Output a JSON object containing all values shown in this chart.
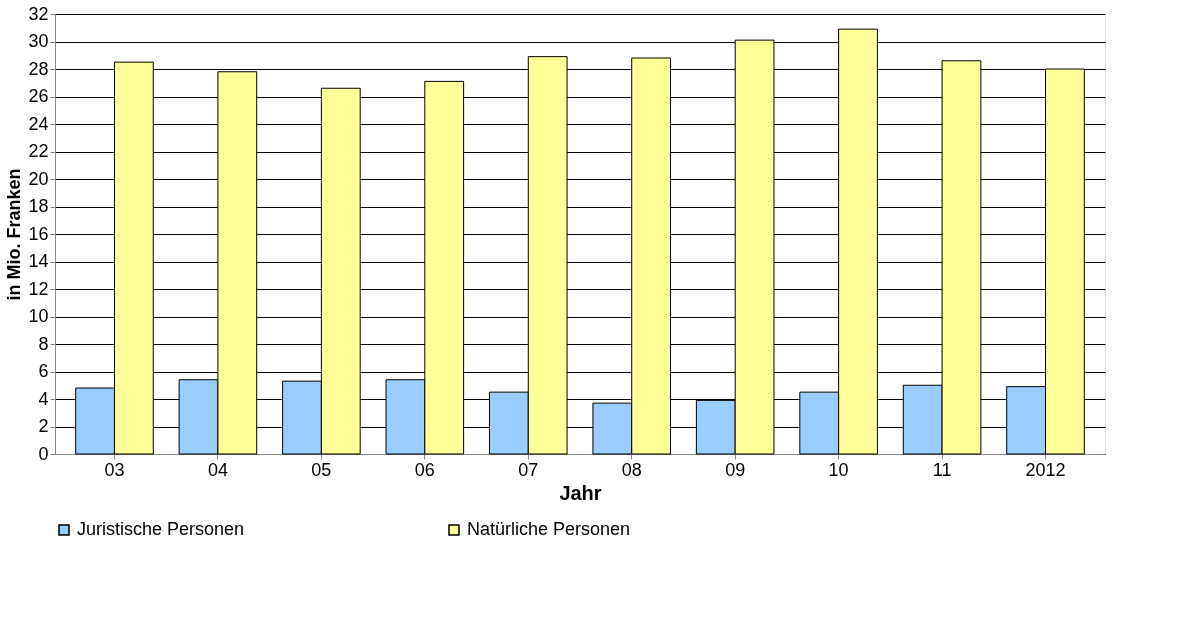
{
  "chart_data": {
    "type": "bar",
    "xlabel": "Jahr",
    "ylabel": "in Mio. Franken",
    "categories": [
      "03",
      "04",
      "05",
      "06",
      "07",
      "08",
      "09",
      "10",
      "11",
      "2012"
    ],
    "series": [
      {
        "name": "Juristische Personen",
        "color": "#99ccff",
        "values": [
          4.8,
          5.4,
          5.3,
          5.4,
          4.5,
          3.7,
          3.9,
          4.5,
          5.0,
          4.9
        ]
      },
      {
        "name": "Natürliche Personen",
        "color": "#ffff99",
        "values": [
          28.5,
          27.8,
          26.6,
          27.1,
          28.9,
          28.8,
          30.1,
          30.9,
          28.6,
          28.0
        ]
      }
    ],
    "ylim": [
      0,
      32
    ],
    "yticks": [
      0,
      2,
      4,
      6,
      8,
      10,
      12,
      14,
      16,
      18,
      20,
      22,
      24,
      26,
      28,
      30,
      32
    ],
    "grid": "y",
    "legend": "bottom"
  }
}
